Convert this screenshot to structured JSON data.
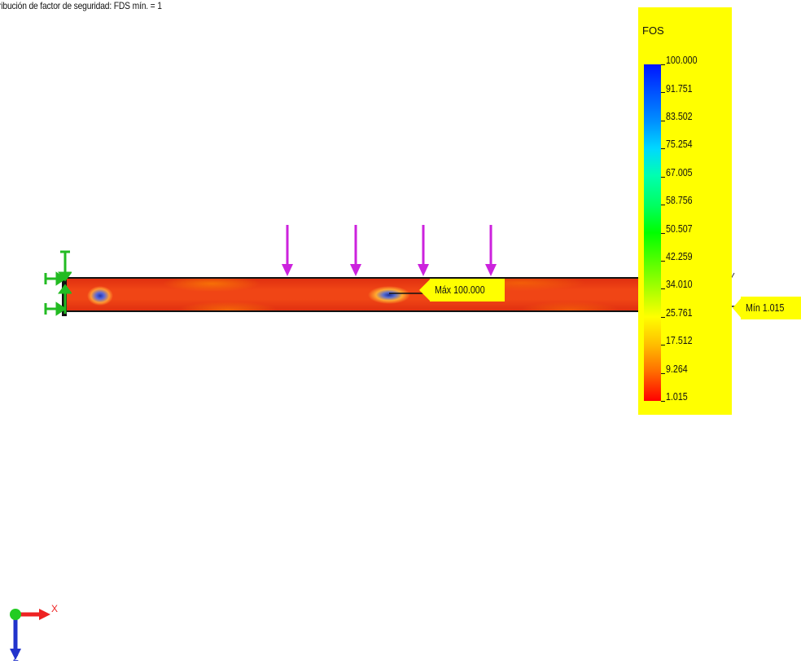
{
  "plot": {
    "title": "ribución de factor de seguridad: FDS mín. = 1"
  },
  "legend": {
    "title": "FOS",
    "colors": {
      "background": "#ffff00",
      "max": "#0014ff",
      "min": "#ff0000"
    },
    "ticks": [
      "100.000",
      "91.751",
      "83.502",
      "75.254",
      "67.005",
      "58.756",
      "50.507",
      "42.259",
      "34.010",
      "25.761",
      "17.512",
      "9.264",
      "1.015"
    ]
  },
  "callouts": {
    "max_label": "Máx 100.000",
    "min_label": "Mín 1.015"
  },
  "loads": {
    "count": 4,
    "color": "#cc22dd"
  },
  "fixtures": {
    "color": "#22bb22"
  },
  "triad": {
    "x_label": "X",
    "z_label": "Z",
    "x_color": "#ee2222",
    "z_color": "#2233cc",
    "origin_color": "#22cc22"
  }
}
